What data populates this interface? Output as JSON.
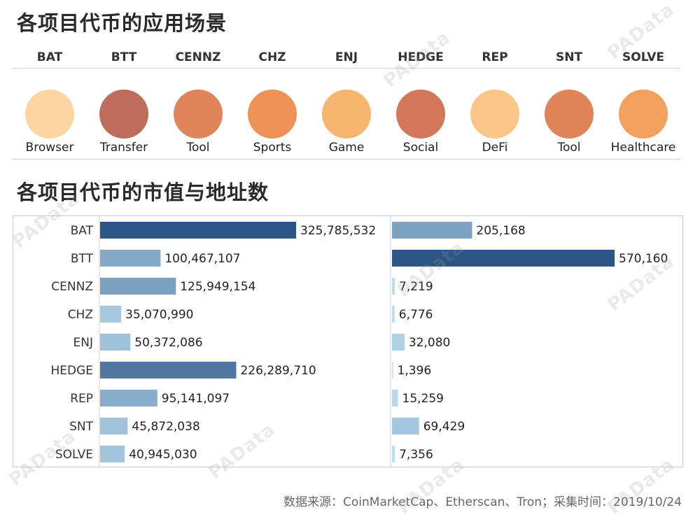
{
  "titles": {
    "use_cases": "各项目代币的应用场景",
    "market": "各项目代币的市值与地址数"
  },
  "use_cases": [
    {
      "token": "BAT",
      "label": "Browser",
      "color": "#fdd5a3"
    },
    {
      "token": "BTT",
      "label": "Transfer",
      "color": "#bd6d59"
    },
    {
      "token": "CENNZ",
      "label": "Tool",
      "color": "#e0845a"
    },
    {
      "token": "CHZ",
      "label": "Sports",
      "color": "#ee9257"
    },
    {
      "token": "ENJ",
      "label": "Game",
      "color": "#f6b56f"
    },
    {
      "token": "HEDGE",
      "label": "Social",
      "color": "#d2775a"
    },
    {
      "token": "REP",
      "label": "DeFi",
      "color": "#f9c688"
    },
    {
      "token": "SNT",
      "label": "Tool",
      "color": "#e0845a"
    },
    {
      "token": "SOLVE",
      "label": "Healthcare",
      "color": "#f1a05e"
    }
  ],
  "chart_data": [
    {
      "type": "bar",
      "orientation": "horizontal",
      "categories": [
        "BAT",
        "BTT",
        "CENNZ",
        "CHZ",
        "ENJ",
        "HEDGE",
        "REP",
        "SNT",
        "SOLVE"
      ],
      "values": [
        325785532,
        100467107,
        125949154,
        35070990,
        50372086,
        226289710,
        95141097,
        45872038,
        40945030
      ],
      "value_labels": [
        "325,785,532",
        "100,467,107",
        "125,949,154",
        "35,070,990",
        "50,372,086",
        "226,289,710",
        "95,141,097",
        "45,872,038",
        "40,945,030"
      ],
      "grid": false
    },
    {
      "type": "bar",
      "orientation": "horizontal",
      "categories": [
        "BAT",
        "BTT",
        "CENNZ",
        "CHZ",
        "ENJ",
        "HEDGE",
        "REP",
        "SNT",
        "SOLVE"
      ],
      "values": [
        205168,
        570160,
        7219,
        6776,
        32080,
        1396,
        15259,
        69429,
        7356
      ],
      "value_labels": [
        "205,168",
        "570,160",
        "7,219",
        "6,776",
        "32,080",
        "1,396",
        "15,259",
        "69,429",
        "7,356"
      ],
      "grid": false
    }
  ],
  "colors": {
    "bar_dark": "#2b5585",
    "bar_light": "#bfe0f2"
  },
  "footer": "数据来源：CoinMarketCap、Etherscan、Tron；采集时间：2019/10/24",
  "watermark": "PAData"
}
